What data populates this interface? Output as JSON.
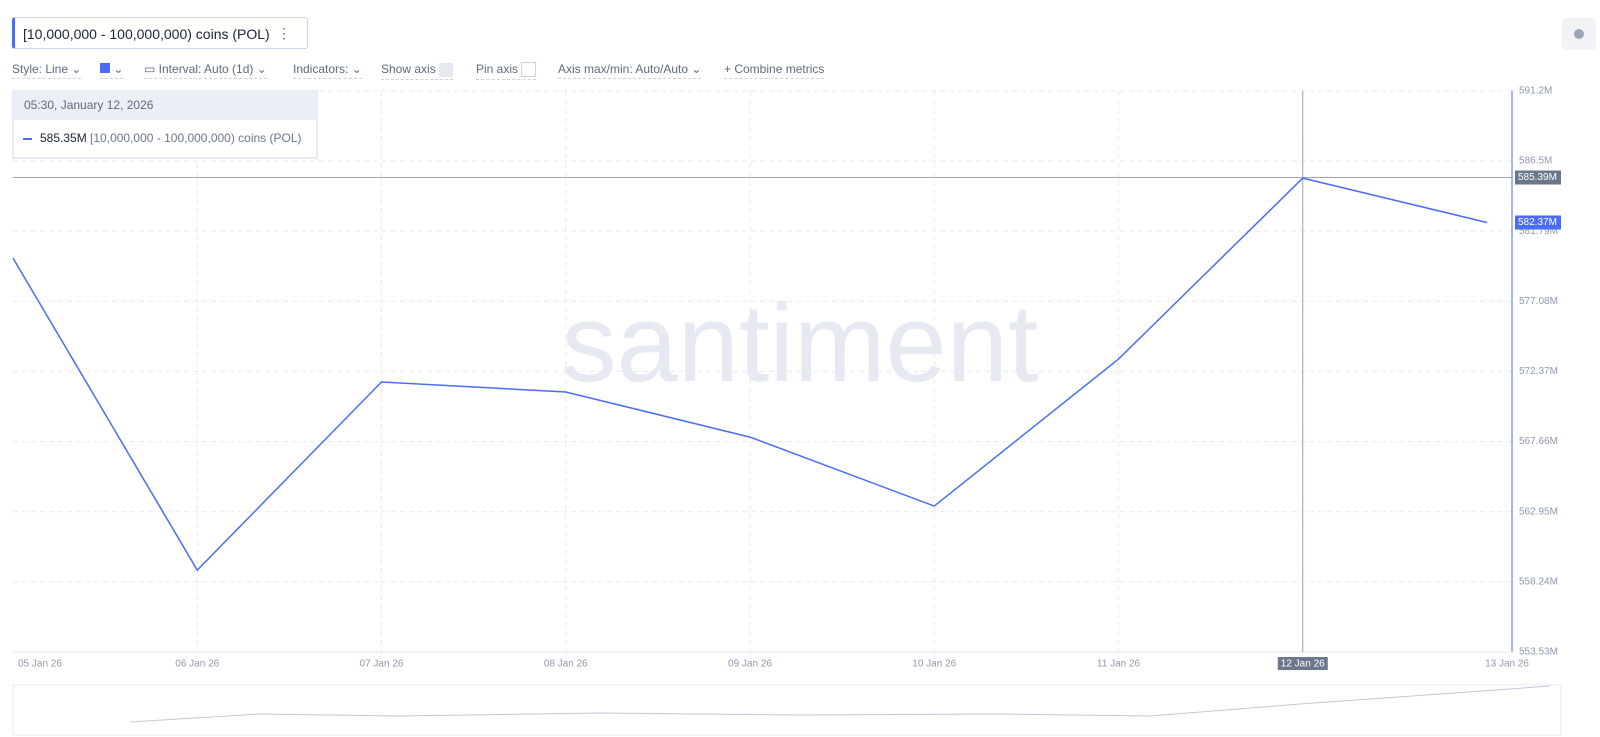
{
  "metric_chip": {
    "label": "[10,000,000 - 100,000,000) coins (POL)"
  },
  "toolbar": {
    "style": "Style: Line",
    "interval": "Interval: Auto (1d)",
    "indicators": "Indicators:",
    "show_axis": "Show axis",
    "pin_axis": "Pin axis",
    "axis_maxmin": "Axis max/min: Auto/Auto",
    "combine": "Combine metrics"
  },
  "tooltip": {
    "time": "05:30, January 12, 2026",
    "value": "585.35M"
  },
  "watermark": "santiment",
  "chart_data": {
    "type": "line",
    "categories": [
      "05 Jan 26",
      "06 Jan 26",
      "07 Jan 26",
      "08 Jan 26",
      "09 Jan 26",
      "10 Jan 26",
      "11 Jan 26",
      "12 Jan 26",
      "13 Jan 26"
    ],
    "series": [
      {
        "name": "[10,000,000 - 100,000,000) coins (POL)",
        "color": "#4a6cf7",
        "values": [
          579.98,
          559.03,
          571.66,
          570.99,
          567.96,
          563.33,
          573.2,
          585.35,
          582.37
        ],
        "value_labels": [
          null,
          null,
          null,
          null,
          null,
          null,
          null,
          null,
          "582.37M"
        ]
      }
    ],
    "ylim": [
      553.53,
      591.2
    ],
    "yticks": [
      {
        "value": 591.2,
        "label": "591.2M"
      },
      {
        "value": 586.5,
        "label": "586.5M"
      },
      {
        "value": 581.79,
        "label": "581.79M"
      },
      {
        "value": 577.08,
        "label": "577.08M"
      },
      {
        "value": 572.37,
        "label": "572.37M"
      },
      {
        "value": 567.66,
        "label": "567.66M"
      },
      {
        "value": 562.95,
        "label": "562.95M"
      },
      {
        "value": 558.24,
        "label": "558.24M"
      },
      {
        "value": 553.53,
        "label": "553.53M"
      }
    ],
    "crosshair": {
      "value": 585.39,
      "label": "585.39M"
    },
    "crosshair_category": 7,
    "grid": true
  }
}
